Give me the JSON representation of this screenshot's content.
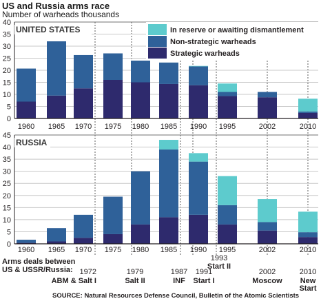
{
  "header": {
    "title": "US and Russia arms race",
    "subtitle": "Number of warheads thousands"
  },
  "colors": {
    "strategic": "#2e2a6d",
    "non_strategic": "#2f6199",
    "reserve": "#5dcbcd",
    "grid": "#c8c8c8",
    "axis": "#231f20"
  },
  "legend": [
    {
      "key": "reserve",
      "label": "In reserve or awaiting dismantlement"
    },
    {
      "key": "non_strategic",
      "label": "Non-strategic warheads"
    },
    {
      "key": "strategic",
      "label": "Strategic warheads"
    }
  ],
  "deals": {
    "label_line1": "Arms deals between",
    "label_line2": "US & USSR/Russia:",
    "items": [
      {
        "year": "1972",
        "name": "ABM & Salt I"
      },
      {
        "year": "1979",
        "name": "Salt II"
      },
      {
        "year": "1987",
        "name": "INF"
      },
      {
        "year": "1991",
        "name": "Start I"
      },
      {
        "year": "1993",
        "name": "Start II"
      },
      {
        "year": "2002",
        "name": "Moscow"
      },
      {
        "year": "2010",
        "name": "New Start"
      }
    ]
  },
  "source": "SOURCE: Natural Resources Defense Council, Bulletin of the Atomic Scientists",
  "chart_data": [
    {
      "type": "bar",
      "stacked": true,
      "title": "UNITED STATES",
      "categories": [
        "1960",
        "1965",
        "1970",
        "1975",
        "1980",
        "1985",
        "1990",
        "1995",
        "2002",
        "2010"
      ],
      "series": [
        {
          "name": "Strategic warheads",
          "key": "strategic",
          "values": [
            7,
            9.5,
            12.5,
            16,
            15,
            14.3,
            13.8,
            9.3,
            8.8,
            2.3
          ]
        },
        {
          "name": "Non-strategic warheads",
          "key": "non_strategic",
          "values": [
            13.7,
            22.5,
            13.8,
            11,
            9,
            8.9,
            7.8,
            1.7,
            2.2,
            0.6
          ]
        },
        {
          "name": "In reserve or awaiting dismantlement",
          "key": "reserve",
          "values": [
            0,
            0,
            0,
            0,
            0,
            0,
            0.2,
            3.5,
            0,
            5.3
          ]
        }
      ],
      "yticks": [
        0,
        5,
        10,
        15,
        20,
        25,
        30,
        35,
        40
      ],
      "ylim": [
        0,
        40
      ],
      "grid": true
    },
    {
      "type": "bar",
      "stacked": true,
      "title": "RUSSIA",
      "categories": [
        "1960",
        "1965",
        "1970",
        "1975",
        "1980",
        "1985",
        "1990",
        "1995",
        "2002",
        "2010"
      ],
      "series": [
        {
          "name": "Strategic warheads",
          "key": "strategic",
          "values": [
            0.4,
            1,
            2.5,
            4,
            8,
            11,
            12,
            8,
            5.5,
            2.8
          ]
        },
        {
          "name": "Non-strategic warheads",
          "key": "non_strategic",
          "values": [
            1.3,
            5.5,
            9.5,
            15.5,
            22,
            28,
            22,
            8,
            3.5,
            2
          ]
        },
        {
          "name": "In reserve or awaiting dismantlement",
          "key": "reserve",
          "values": [
            0,
            0,
            0,
            0,
            0,
            4,
            3.5,
            12,
            9.5,
            8.5
          ]
        }
      ],
      "yticks": [
        0,
        5,
        10,
        15,
        20,
        25,
        30,
        35,
        40,
        45
      ],
      "ylim": [
        0,
        45
      ],
      "grid": true
    }
  ]
}
